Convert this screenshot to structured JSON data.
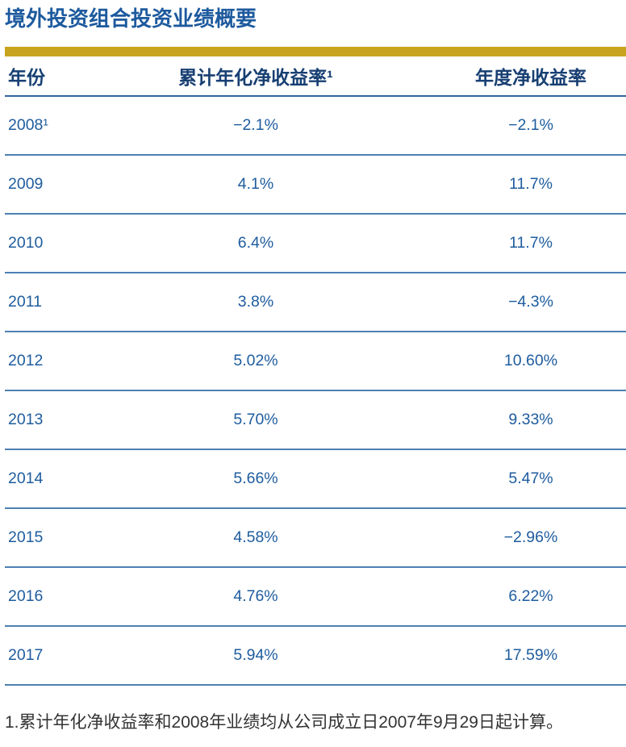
{
  "title": "境外投资组合投资业绩概要",
  "colors": {
    "title_text": "#1D5A9E",
    "gold_accent_bar": "#C8A41E",
    "header_text": "#173F72",
    "header_underline": "#31649C",
    "data_text": "#1E5C9E",
    "row_separator": "#4D80B2",
    "footnote_text": "#333333"
  },
  "table": {
    "columns": [
      "年份",
      "累计年化净收益率¹",
      "年度净收益率"
    ],
    "rows": [
      {
        "year": "2008¹",
        "cumulative": "−2.1%",
        "annual": "−2.1%"
      },
      {
        "year": "2009",
        "cumulative": "4.1%",
        "annual": "11.7%"
      },
      {
        "year": "2010",
        "cumulative": "6.4%",
        "annual": "11.7%"
      },
      {
        "year": "2011",
        "cumulative": "3.8%",
        "annual": "−4.3%"
      },
      {
        "year": "2012",
        "cumulative": "5.02%",
        "annual": "10.60%"
      },
      {
        "year": "2013",
        "cumulative": "5.70%",
        "annual": "9.33%"
      },
      {
        "year": "2014",
        "cumulative": "5.66%",
        "annual": "5.47%"
      },
      {
        "year": "2015",
        "cumulative": "4.58%",
        "annual": "−2.96%"
      },
      {
        "year": "2016",
        "cumulative": "4.76%",
        "annual": "6.22%"
      },
      {
        "year": "2017",
        "cumulative": "5.94%",
        "annual": "17.59%"
      }
    ]
  },
  "footnote": "1.累计年化净收益率和2008年业绩均从公司成立日2007年9月29日起计算。",
  "chart_data": {
    "type": "table",
    "title": "境外投资组合投资业绩概要",
    "columns": [
      "年份",
      "累计年化净收益率(%)",
      "年度净收益率(%)"
    ],
    "categories": [
      "2008",
      "2009",
      "2010",
      "2011",
      "2012",
      "2013",
      "2014",
      "2015",
      "2016",
      "2017"
    ],
    "series": [
      {
        "name": "累计年化净收益率",
        "values": [
          -2.1,
          4.1,
          6.4,
          3.8,
          5.02,
          5.7,
          5.66,
          4.58,
          4.76,
          5.94
        ]
      },
      {
        "name": "年度净收益率",
        "values": [
          -2.1,
          11.7,
          11.7,
          -4.3,
          10.6,
          9.33,
          5.47,
          -2.96,
          6.22,
          17.59
        ]
      }
    ],
    "footnote": "累计年化净收益率和2008年业绩均从公司成立日2007年9月29日起计算"
  }
}
